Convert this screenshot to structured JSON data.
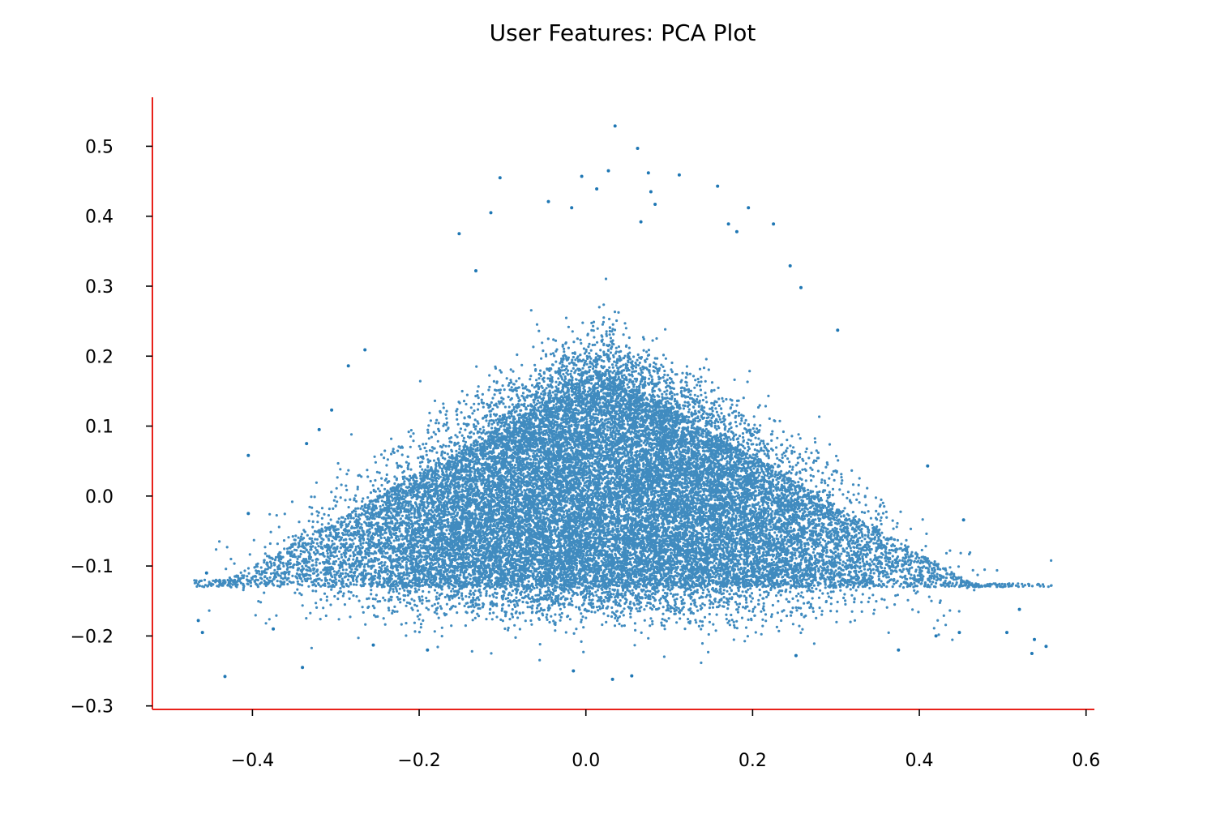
{
  "chart_data": {
    "type": "scatter",
    "title": "User Features: PCA Plot",
    "xlabel": "",
    "ylabel": "",
    "xlim": [
      -0.52,
      0.61
    ],
    "ylim": [
      -0.305,
      0.57
    ],
    "x_ticks": [
      -0.4,
      -0.2,
      0.0,
      0.2,
      0.4,
      0.6
    ],
    "x_tick_labels": [
      "−0.4",
      "−0.2",
      "0.0",
      "0.2",
      "0.4",
      "0.6"
    ],
    "y_ticks": [
      -0.3,
      -0.2,
      -0.1,
      0.0,
      0.1,
      0.2,
      0.3,
      0.4,
      0.5
    ],
    "y_tick_labels": [
      "−0.3",
      "−0.2",
      "−0.1",
      "0.0",
      "0.1",
      "0.2",
      "0.3",
      "0.4",
      "0.5"
    ],
    "grid": false,
    "legend": "none",
    "colors": {
      "points": "#1f77b4",
      "axes": "#e8211a",
      "text": "#000000"
    },
    "series": [
      {
        "values": [
          [
            0.035,
            0.529
          ],
          [
            0.062,
            0.497
          ],
          [
            -0.103,
            0.455
          ],
          [
            -0.005,
            0.457
          ],
          [
            0.075,
            0.462
          ],
          [
            0.112,
            0.459
          ],
          [
            0.027,
            0.465
          ],
          [
            0.158,
            0.443
          ],
          [
            0.013,
            0.439
          ],
          [
            0.078,
            0.435
          ],
          [
            -0.045,
            0.421
          ],
          [
            -0.114,
            0.405
          ],
          [
            -0.017,
            0.412
          ],
          [
            0.195,
            0.412
          ],
          [
            0.225,
            0.389
          ],
          [
            0.066,
            0.392
          ],
          [
            -0.152,
            0.375
          ],
          [
            0.181,
            0.378
          ],
          [
            0.171,
            0.389
          ],
          [
            0.083,
            0.417
          ],
          [
            -0.265,
            0.209
          ],
          [
            -0.285,
            0.186
          ],
          [
            -0.305,
            0.123
          ],
          [
            -0.32,
            0.095
          ],
          [
            -0.335,
            0.075
          ],
          [
            -0.405,
            -0.025
          ],
          [
            -0.455,
            -0.11
          ],
          [
            -0.465,
            -0.178
          ],
          [
            -0.46,
            -0.195
          ],
          [
            -0.433,
            -0.258
          ],
          [
            -0.34,
            -0.245
          ],
          [
            -0.255,
            -0.213
          ],
          [
            -0.19,
            -0.22
          ],
          [
            -0.015,
            -0.25
          ],
          [
            0.032,
            -0.262
          ],
          [
            0.055,
            -0.257
          ],
          [
            0.252,
            -0.228
          ],
          [
            0.375,
            -0.22
          ],
          [
            0.42,
            -0.2
          ],
          [
            0.448,
            -0.195
          ],
          [
            0.52,
            -0.162
          ],
          [
            0.535,
            -0.225
          ],
          [
            0.552,
            -0.215
          ],
          [
            0.538,
            -0.205
          ],
          [
            0.41,
            0.043
          ],
          [
            0.453,
            -0.034
          ],
          [
            0.302,
            0.237
          ],
          [
            0.258,
            0.298
          ],
          [
            0.245,
            0.329
          ],
          [
            -0.132,
            0.322
          ],
          [
            -0.405,
            0.058
          ],
          [
            -0.375,
            -0.19
          ],
          [
            0.505,
            -0.195
          ]
        ]
      }
    ],
    "point_cloud": {
      "description_of_distribution": "dense triangular cloud",
      "count": 26000,
      "x_center": 0.02,
      "y_floor": -0.13,
      "y_peak": 0.18,
      "x_left": -0.43,
      "x_right": 0.47
    }
  }
}
